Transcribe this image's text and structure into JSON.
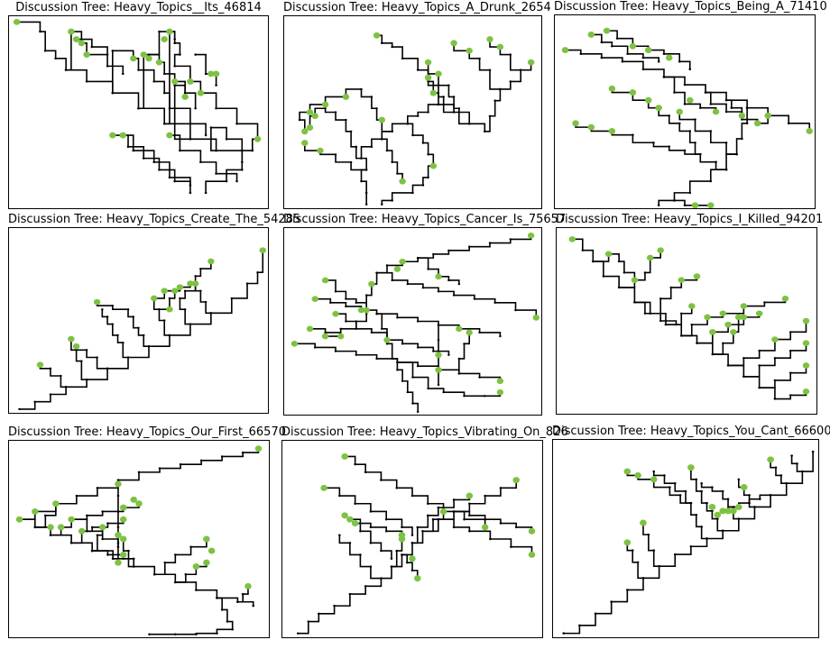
{
  "panels": [
    {
      "title": "Discussion Tree: Heavy_Topics__Its_46814"
    },
    {
      "title": "Discussion Tree: Heavy_Topics_A_Drunk_2654"
    },
    {
      "title": "Discussion Tree: Heavy_Topics_Being_A_71410"
    },
    {
      "title": "Discussion Tree: Heavy_Topics_Create_The_54285"
    },
    {
      "title": "Discussion Tree: Heavy_Topics_Cancer_Is_75657"
    },
    {
      "title": "Discussion Tree: Heavy_Topics_I_Killed_94201"
    },
    {
      "title": "Discussion Tree: Heavy_Topics_Our_First_66570"
    },
    {
      "title": "Discussion Tree: Heavy_Topics_Vibrating_On_826"
    },
    {
      "title": "Discussion Tree: Heavy_Topics_You_Cant_66600"
    }
  ],
  "colors": {
    "edge": "#000000",
    "leaf": "#7dc242",
    "node": "#000000"
  }
}
